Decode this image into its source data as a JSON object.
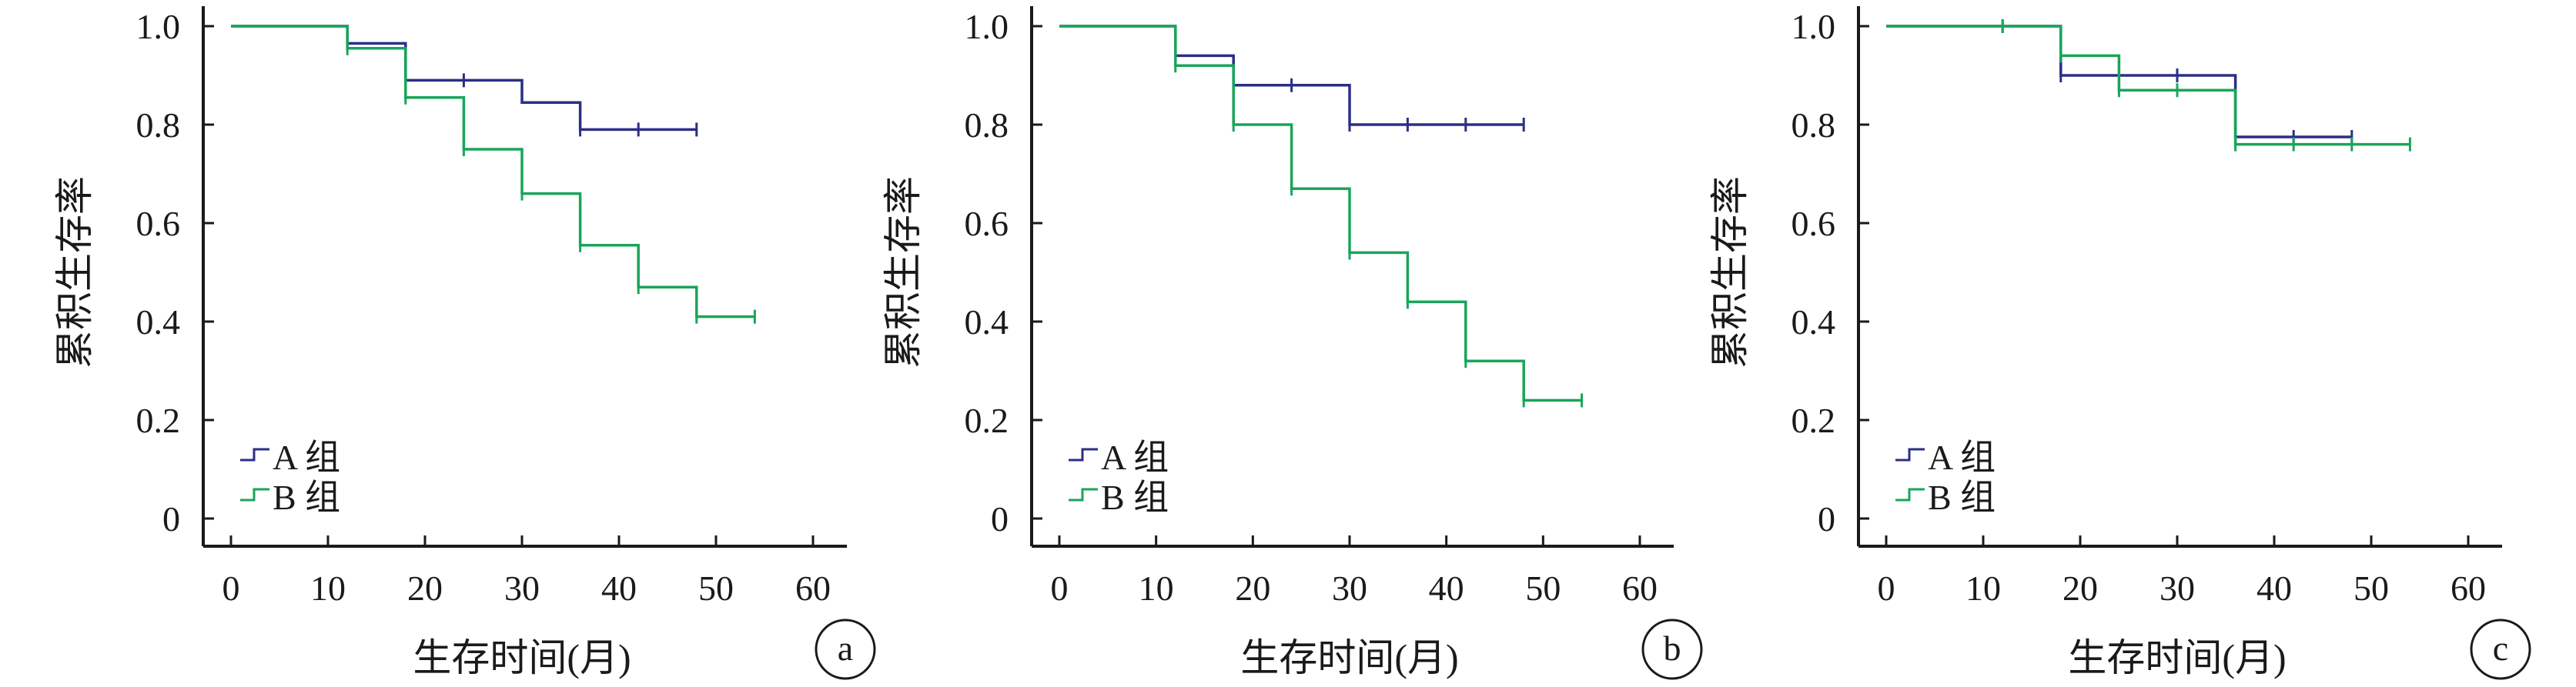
{
  "colors": {
    "A": "#2b2f86",
    "B": "#19a55a",
    "axis": "#1a1a1a"
  },
  "chart_data": [
    {
      "type": "line",
      "panel_label": "a",
      "xlabel": "生存时间(月)",
      "ylabel": "累积生存率",
      "xlim": [
        0,
        60
      ],
      "ylim": [
        0,
        1
      ],
      "xticks": [
        "0",
        "10",
        "20",
        "30",
        "40",
        "50",
        "60"
      ],
      "yticks": [
        "0",
        "0.2",
        "0.4",
        "0.6",
        "0.8",
        "1.0"
      ],
      "legend": "bottom-left",
      "series": [
        {
          "name": "A 组",
          "key": "A",
          "steps": [
            [
              0,
              1.0
            ],
            [
              12,
              0.965
            ],
            [
              18,
              0.89
            ],
            [
              30,
              0.845
            ],
            [
              36,
              0.79
            ]
          ],
          "end_x": 48,
          "censored": [
            [
              12,
              0.965
            ],
            [
              24,
              0.89
            ],
            [
              36,
              0.79
            ],
            [
              42,
              0.79
            ],
            [
              48,
              0.79
            ]
          ]
        },
        {
          "name": "B 组",
          "key": "B",
          "steps": [
            [
              0,
              1.0
            ],
            [
              12,
              0.955
            ],
            [
              18,
              0.855
            ],
            [
              24,
              0.75
            ],
            [
              30,
              0.66
            ],
            [
              36,
              0.555
            ],
            [
              42,
              0.47
            ],
            [
              48,
              0.41
            ]
          ],
          "end_x": 54,
          "censored": [
            [
              12,
              0.955
            ],
            [
              18,
              0.855
            ],
            [
              24,
              0.75
            ],
            [
              30,
              0.66
            ],
            [
              36,
              0.555
            ],
            [
              42,
              0.47
            ],
            [
              48,
              0.41
            ],
            [
              54,
              0.41
            ]
          ]
        }
      ]
    },
    {
      "type": "line",
      "panel_label": "b",
      "xlabel": "生存时间(月)",
      "ylabel": "累积生存率",
      "xlim": [
        0,
        60
      ],
      "ylim": [
        0,
        1
      ],
      "xticks": [
        "0",
        "10",
        "20",
        "30",
        "40",
        "50",
        "60"
      ],
      "yticks": [
        "0",
        "0.2",
        "0.4",
        "0.6",
        "0.8",
        "1.0"
      ],
      "legend": "bottom-left",
      "series": [
        {
          "name": "A 组",
          "key": "A",
          "steps": [
            [
              0,
              1.0
            ],
            [
              12,
              0.94
            ],
            [
              18,
              0.88
            ],
            [
              30,
              0.8
            ]
          ],
          "end_x": 48,
          "censored": [
            [
              12,
              0.94
            ],
            [
              24,
              0.88
            ],
            [
              30,
              0.8
            ],
            [
              36,
              0.8
            ],
            [
              42,
              0.8
            ],
            [
              48,
              0.8
            ]
          ]
        },
        {
          "name": "B 组",
          "key": "B",
          "steps": [
            [
              0,
              1.0
            ],
            [
              12,
              0.92
            ],
            [
              18,
              0.8
            ],
            [
              24,
              0.67
            ],
            [
              30,
              0.54
            ],
            [
              36,
              0.44
            ],
            [
              42,
              0.32
            ],
            [
              48,
              0.24
            ]
          ],
          "end_x": 54,
          "censored": [
            [
              12,
              0.92
            ],
            [
              18,
              0.8
            ],
            [
              24,
              0.67
            ],
            [
              30,
              0.54
            ],
            [
              36,
              0.44
            ],
            [
              42,
              0.32
            ],
            [
              48,
              0.24
            ],
            [
              54,
              0.24
            ]
          ]
        }
      ]
    },
    {
      "type": "line",
      "panel_label": "c",
      "xlabel": "生存时间(月)",
      "ylabel": "累积生存率",
      "xlim": [
        0,
        60
      ],
      "ylim": [
        0,
        1
      ],
      "xticks": [
        "0",
        "10",
        "20",
        "30",
        "40",
        "50",
        "60"
      ],
      "yticks": [
        "0",
        "0.2",
        "0.4",
        "0.6",
        "0.8",
        "1.0"
      ],
      "legend": "bottom-left",
      "series": [
        {
          "name": "A 组",
          "key": "A",
          "steps": [
            [
              0,
              1.0
            ],
            [
              18,
              0.9
            ],
            [
              36,
              0.775
            ]
          ],
          "end_x": 48,
          "censored": [
            [
              12,
              1.0
            ],
            [
              18,
              0.9
            ],
            [
              30,
              0.9
            ],
            [
              42,
              0.775
            ],
            [
              48,
              0.775
            ]
          ]
        },
        {
          "name": "B 组",
          "key": "B",
          "steps": [
            [
              0,
              1.0
            ],
            [
              18,
              0.94
            ],
            [
              24,
              0.87
            ],
            [
              36,
              0.76
            ]
          ],
          "end_x": 54,
          "censored": [
            [
              12,
              1.0
            ],
            [
              18,
              0.94
            ],
            [
              24,
              0.87
            ],
            [
              30,
              0.87
            ],
            [
              36,
              0.76
            ],
            [
              42,
              0.76
            ],
            [
              48,
              0.76
            ],
            [
              54,
              0.76
            ]
          ]
        }
      ]
    }
  ]
}
